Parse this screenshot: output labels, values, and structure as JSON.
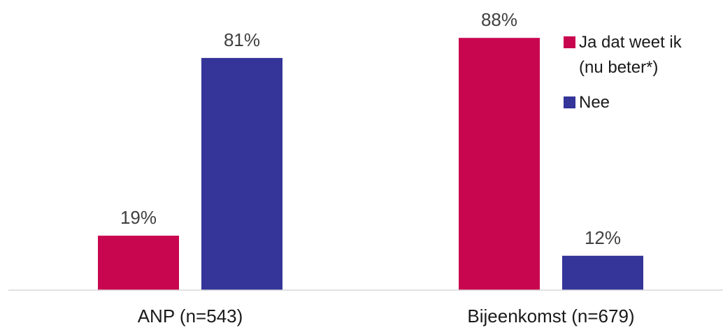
{
  "chart_data": {
    "type": "bar",
    "categories": [
      "ANP (n=543)",
      "Bijeenkomst (n=679)"
    ],
    "series": [
      {
        "name": "Ja dat weet ik (nu beter*)",
        "legend_lines": [
          "Ja dat weet ik",
          "(nu beter*)"
        ],
        "color": "#c8064f",
        "values": [
          19,
          88
        ],
        "labels": [
          "19%",
          "88%"
        ]
      },
      {
        "name": "Nee",
        "legend_lines": [
          "Nee"
        ],
        "color": "#343499",
        "values": [
          81,
          12
        ],
        "labels": [
          "81%",
          "12%"
        ]
      }
    ],
    "ylim": [
      0,
      100
    ],
    "legend_position": "top-right",
    "grid": false,
    "axis_color": "#d9d9d9"
  }
}
